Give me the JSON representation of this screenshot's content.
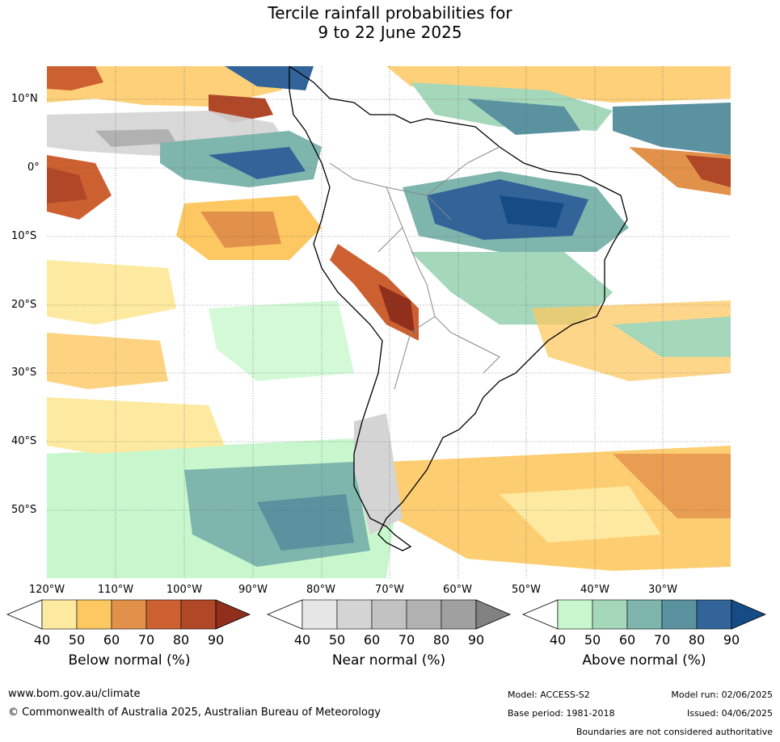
{
  "title_line1": "Tercile rainfall probabilities for",
  "title_line2": "9 to 22 June 2025",
  "lat_labels": [
    "10°N",
    "0°",
    "10°S",
    "20°S",
    "30°S",
    "40°S",
    "50°S"
  ],
  "lon_labels": [
    "120°W",
    "110°W",
    "100°W",
    "90°W",
    "80°W",
    "70°W",
    "60°W",
    "50°W",
    "40°W",
    "30°W"
  ],
  "legend": {
    "below": {
      "title": "Below normal (%)",
      "ticks": [
        "40",
        "50",
        "60",
        "70",
        "80",
        "90"
      ],
      "colors": [
        "#ffffff",
        "#fde9a0",
        "#fdc862",
        "#e2914b",
        "#cd6031",
        "#b04828",
        "#8f2f1c"
      ]
    },
    "near": {
      "title": "Near normal (%)",
      "ticks": [
        "40",
        "50",
        "60",
        "70",
        "80",
        "90"
      ],
      "colors": [
        "#ffffff",
        "#e6e6e6",
        "#d4d4d4",
        "#c2c2c2",
        "#b1b1b1",
        "#a0a0a0",
        "#828282"
      ]
    },
    "above": {
      "title": "Above normal (%)",
      "ticks": [
        "40",
        "50",
        "60",
        "70",
        "80",
        "90"
      ],
      "colors": [
        "#ffffff",
        "#c8f7cd",
        "#a5d7bb",
        "#7eb5ad",
        "#5a92a0",
        "#32649a",
        "#164c86"
      ]
    }
  },
  "footer": {
    "url": "www.bom.gov.au/climate",
    "copyright": "© Commonwealth of Australia 2025, Australian Bureau of Meteorology",
    "model": "Model: ACCESS-S2",
    "base_period": "Base period: 1981-2018",
    "model_run": "Model run: 02/06/2025",
    "issued": "Issued: 04/06/2025",
    "disclaimer": "Boundaries are not considered authoritative"
  }
}
